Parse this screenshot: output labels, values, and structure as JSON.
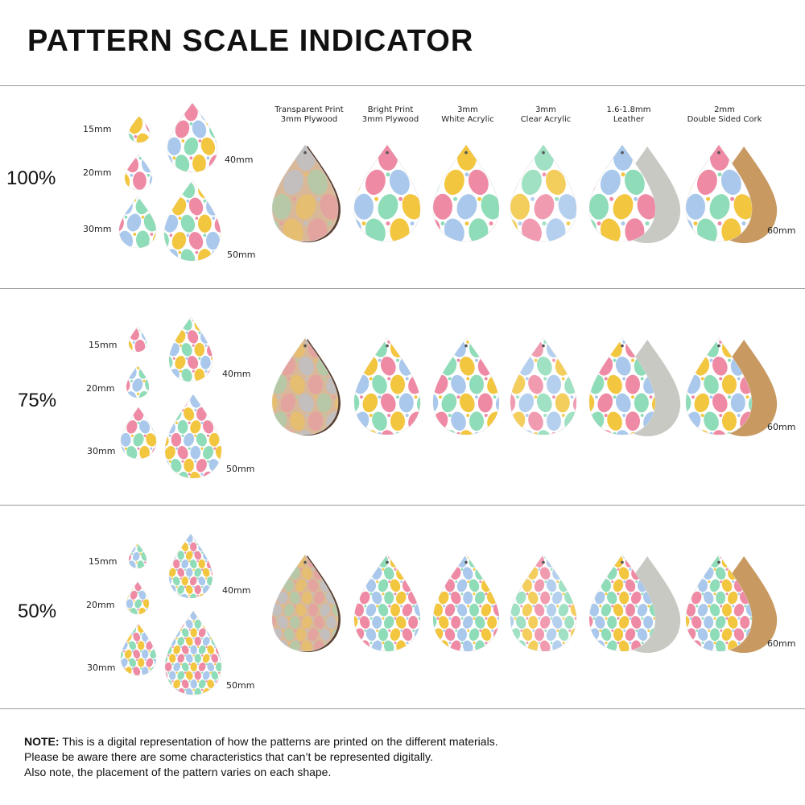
{
  "title": "PATTERN SCALE INDICATOR",
  "size_labels": [
    "15mm",
    "20mm",
    "30mm",
    "40mm",
    "50mm",
    "60mm"
  ],
  "materials": [
    {
      "line1": "Transparent Print",
      "line2": "3mm Plywood",
      "kind": "plywood"
    },
    {
      "line1": "Bright Print",
      "line2": "3mm Plywood",
      "kind": "bright"
    },
    {
      "line1": "3mm",
      "line2": "White Acrylic",
      "kind": "white"
    },
    {
      "line1": "3mm",
      "line2": "Clear Acrylic",
      "kind": "clear"
    },
    {
      "line1": "1.6-1.8mm",
      "line2": "Leather",
      "kind": "leather"
    },
    {
      "line1": "2mm",
      "line2": "Double Sided Cork",
      "kind": "cork"
    }
  ],
  "sections": [
    {
      "scale": "100%"
    },
    {
      "scale": "75%"
    },
    {
      "scale": "50%"
    }
  ],
  "note": {
    "bold": "NOTE:",
    "line1": " This is a digital representation of how the patterns are printed on the different materials.",
    "line2": "Please be aware there are some characteristics that can’t be represented digitally.",
    "line3": "Also note, the placement of the pattern varies on each shape."
  },
  "colors": {
    "egg_green": "#8fdcb8",
    "egg_yellow": "#f3c640",
    "egg_pink": "#ef8aa4",
    "egg_blue": "#a9c8ec",
    "plywood": "#d9b89a",
    "leather_back": "#c9c9c4",
    "cork_back": "#c89a62",
    "edge_dark": "#5a3f30"
  }
}
